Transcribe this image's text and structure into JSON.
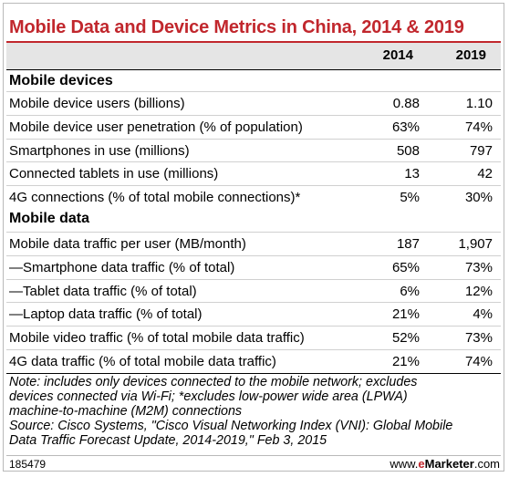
{
  "chart_data": {
    "type": "table",
    "title": "Mobile Data and Device Metrics in China, 2014 & 2019",
    "columns": [
      "2014",
      "2019"
    ],
    "sections": [
      {
        "name": "Mobile devices",
        "rows": [
          {
            "label": "Mobile device users (billions)",
            "values": [
              "0.88",
              "1.10"
            ]
          },
          {
            "label": "Mobile device user penetration (% of population)",
            "values": [
              "63%",
              "74%"
            ]
          },
          {
            "label": "Smartphones in use (millions)",
            "values": [
              "508",
              "797"
            ]
          },
          {
            "label": "Connected tablets in use (millions)",
            "values": [
              "13",
              "42"
            ]
          },
          {
            "label": "4G connections (% of total mobile connections)*",
            "values": [
              "5%",
              "30%"
            ]
          }
        ]
      },
      {
        "name": "Mobile data",
        "rows": [
          {
            "label": "Mobile data traffic per user (MB/month)",
            "values": [
              "187",
              "1,907"
            ]
          },
          {
            "label": "—Smartphone data traffic (% of total)",
            "values": [
              "65%",
              "73%"
            ]
          },
          {
            "label": "—Tablet data traffic (% of total)",
            "values": [
              "6%",
              "12%"
            ]
          },
          {
            "label": "—Laptop data traffic (% of total)",
            "values": [
              "21%",
              "4%"
            ]
          },
          {
            "label": "Mobile video traffic (% of total mobile data traffic)",
            "values": [
              "52%",
              "73%"
            ]
          },
          {
            "label": "4G data traffic (% of total mobile data traffic)",
            "values": [
              "21%",
              "74%"
            ]
          }
        ]
      }
    ],
    "note_lines": [
      "Note: includes only devices connected to the mobile network; excludes",
      "devices connected via Wi-Fi; *excludes low-power wide area (LPWA)",
      "machine-to-machine (M2M) connections",
      "Source: Cisco Systems, \"Cisco Visual Networking Index (VNI): Global Mobile",
      "Data Traffic Forecast Update, 2014-2019,\" Feb 3, 2015"
    ],
    "footer_id": "185479",
    "footer_brand_prefix": "www.",
    "footer_brand_e": "e",
    "footer_brand_name": "Marketer",
    "footer_brand_suffix": ".com"
  },
  "colors": {
    "accent": "#c1272d",
    "header_bg": "#e5e5e5"
  }
}
